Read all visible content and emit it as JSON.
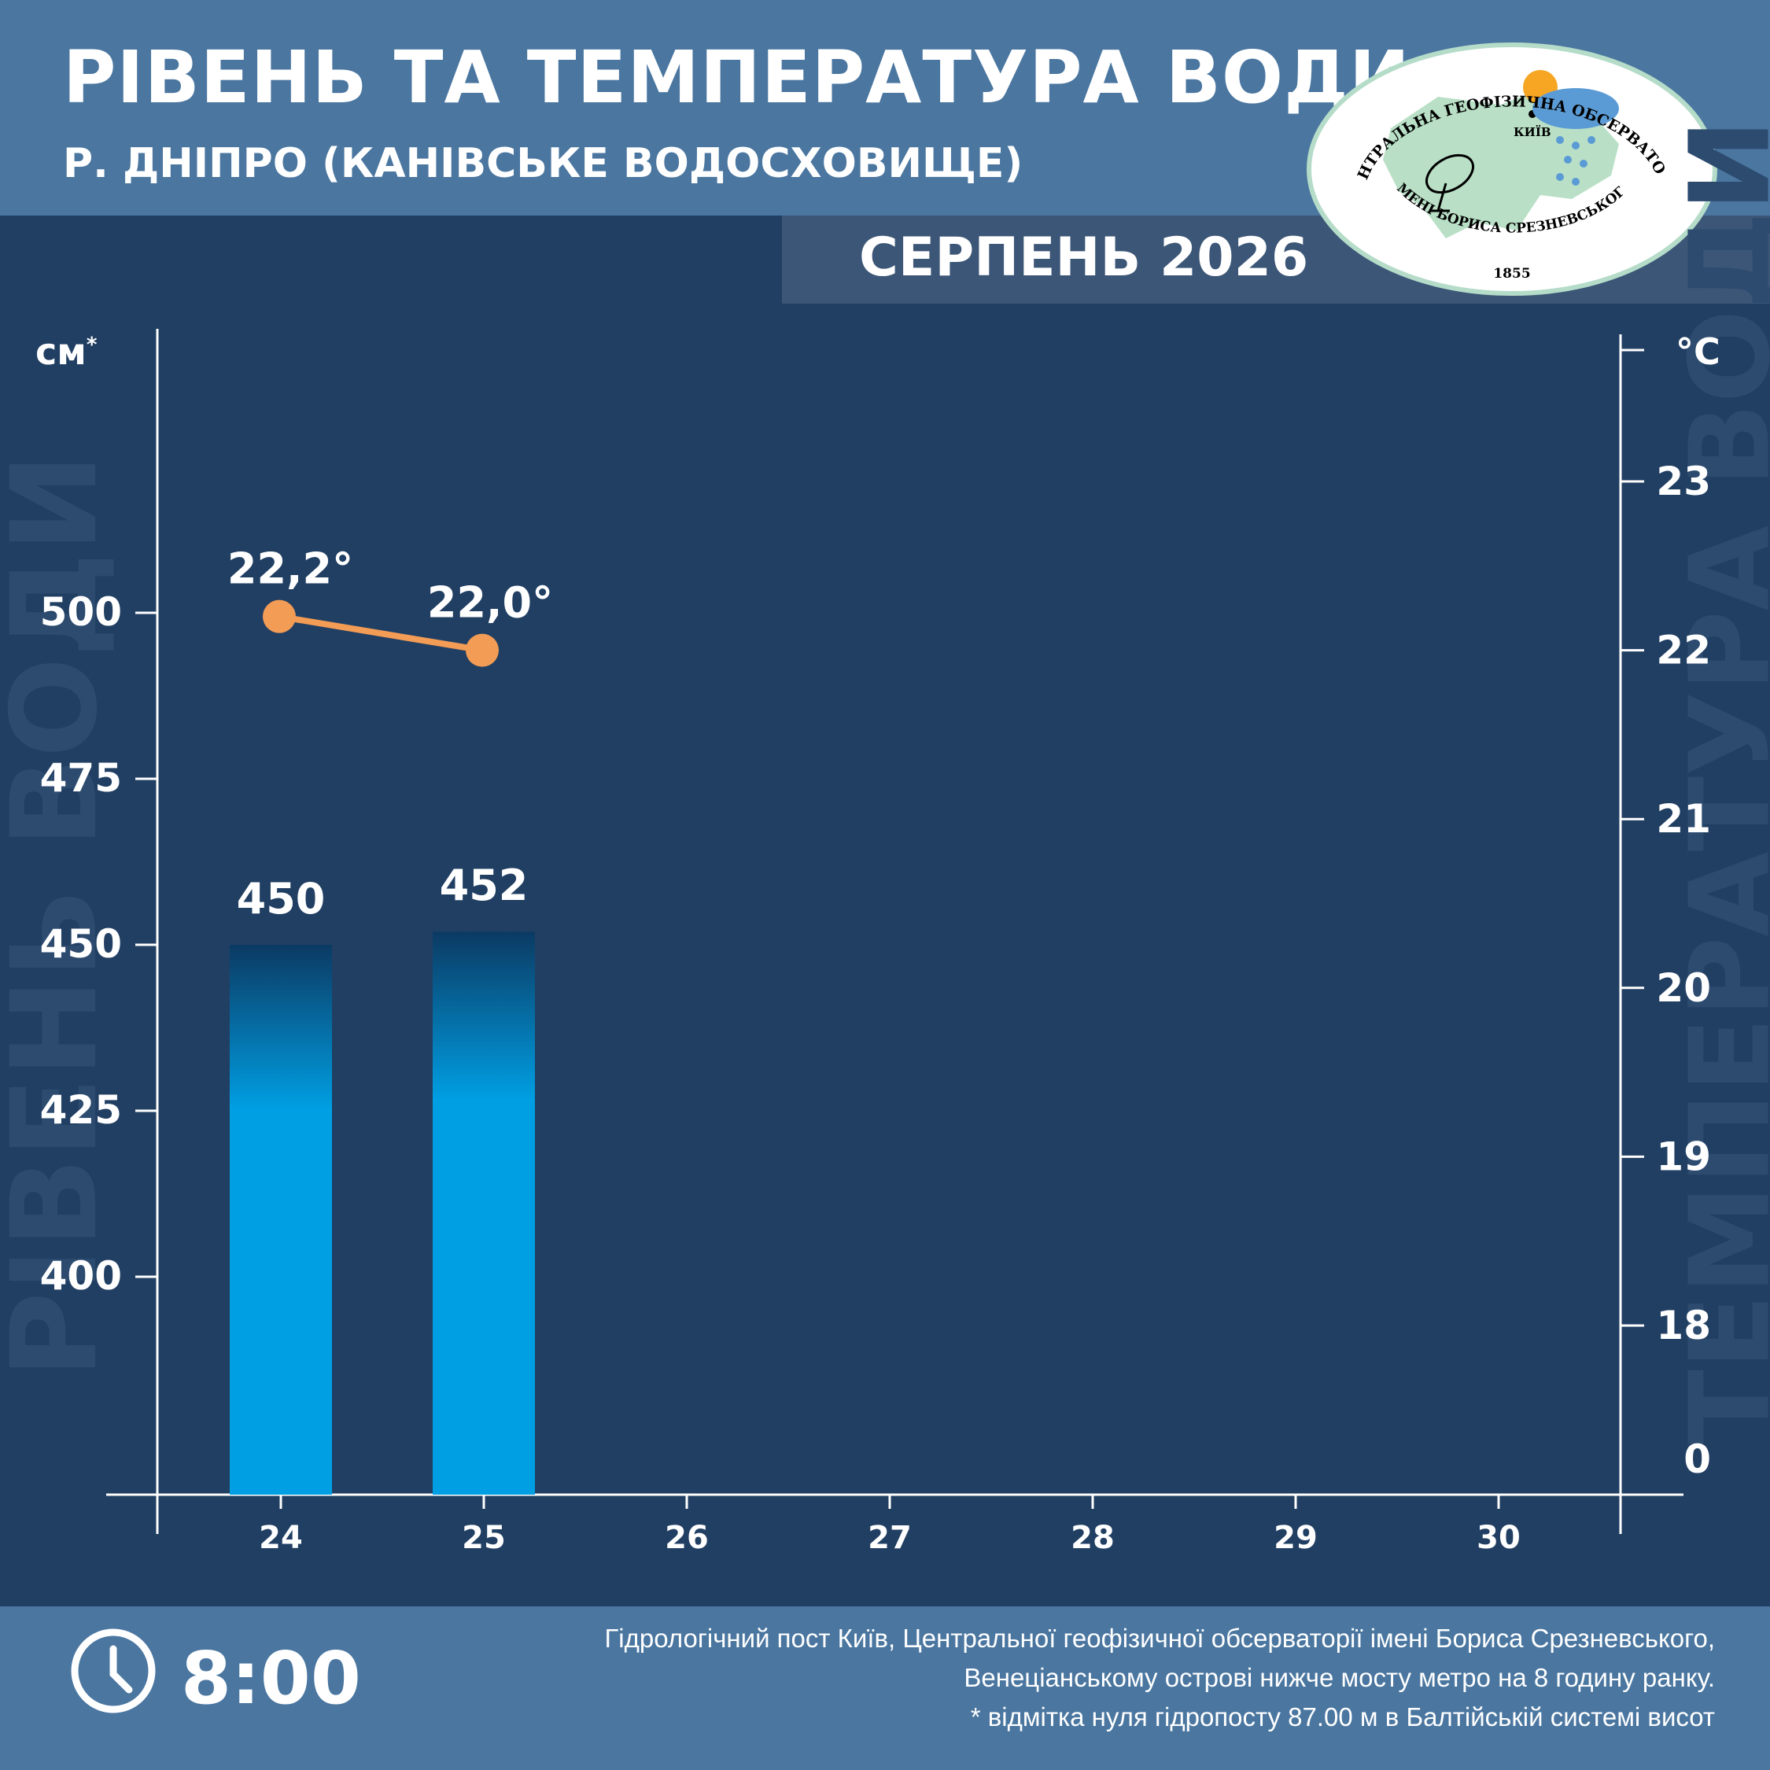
{
  "header": {
    "title": "РІВЕНЬ ТА ТЕМПЕРАТУРА ВОДИ",
    "subtitle": "Р. ДНІПРО (КАНІВСЬКЕ ВОДОСХОВИЩЕ)",
    "period": "СЕРПЕНЬ 2026"
  },
  "logo": {
    "top_text": "ЦЕНТРАЛЬНА ГЕОФІЗИЧНА ОБСЕРВАТОРІЯ",
    "bottom_text": "ІМЕНІ БОРИСА СРЕЗНЕВСЬКОГО",
    "year": "1855",
    "city": "КИЇВ"
  },
  "axes": {
    "left_unit": "см",
    "left_unit_mark": "*",
    "right_unit": "°C",
    "left_ghost_label": "РІВЕНЬ ВОДИ",
    "right_ghost_label": "ТЕМПЕРАТУРА ВОДИ"
  },
  "chart_data": {
    "type": "bar",
    "categories": [
      "24",
      "25",
      "26",
      "27",
      "28",
      "29",
      "30"
    ],
    "series": [
      {
        "values": [
          450,
          452,
          null,
          null,
          null,
          null,
          null
        ],
        "labels": [
          "450",
          "452",
          "",
          "",
          "",
          "",
          ""
        ],
        "axis": "left",
        "kind": "bar"
      },
      {
        "values": [
          22.2,
          22.0,
          null,
          null,
          null,
          null,
          null
        ],
        "labels": [
          "22,2°",
          "22,0°",
          "",
          "",
          "",
          "",
          ""
        ],
        "axis": "right",
        "kind": "line"
      }
    ],
    "left_ticks": [
      400,
      425,
      450,
      475,
      500
    ],
    "right_ticks": [
      0,
      18,
      19,
      20,
      21,
      22,
      23
    ],
    "colors": {
      "bar_top": "#0b3a63",
      "bar": "#009fe3",
      "line": "#f39c55",
      "axis": "#ffffff"
    }
  },
  "footer": {
    "time": "8:00",
    "note_line1": "Гідрологічний пост Київ, Центральної геофізичної обсерваторії імені Бориса Срезневського,",
    "note_line2": "Венеціанському острові нижче мосту метро  на 8 годину ранку.",
    "note_line3": "* відмітка нуля гідропосту 87.00 м в Балтійській системі висот"
  }
}
